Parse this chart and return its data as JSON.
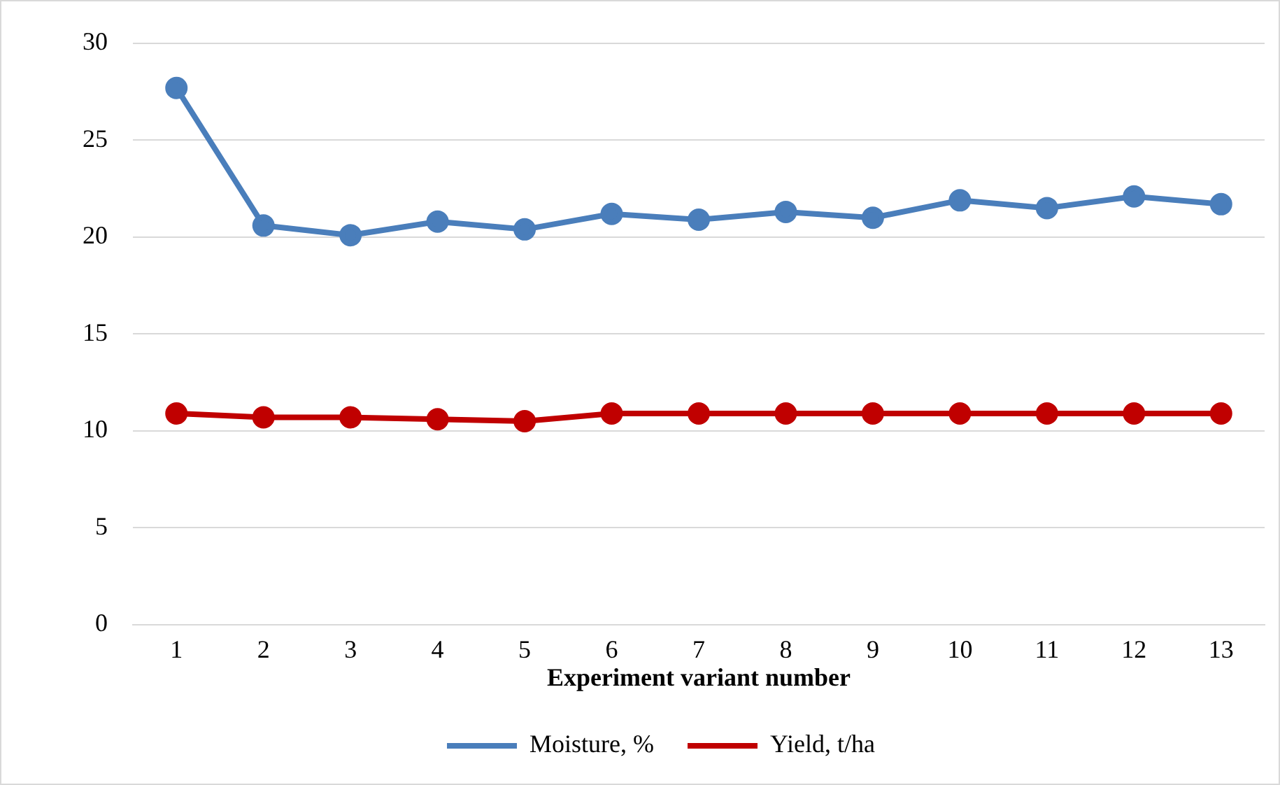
{
  "chart_data": {
    "type": "line",
    "xlabel": "Experiment variant number",
    "categories": [
      "1",
      "2",
      "3",
      "4",
      "5",
      "6",
      "7",
      "8",
      "9",
      "10",
      "11",
      "12",
      "13"
    ],
    "series": [
      {
        "name": "Moisture, %",
        "color": "#4a7ebb",
        "values": [
          27.7,
          20.6,
          20.1,
          20.8,
          20.4,
          21.2,
          20.9,
          21.3,
          21.0,
          21.9,
          21.5,
          22.1,
          21.7
        ]
      },
      {
        "name": "Yield, t/ha",
        "color": "#c00000",
        "values": [
          10.9,
          10.7,
          10.7,
          10.6,
          10.5,
          10.9,
          10.9,
          10.9,
          10.9,
          10.9,
          10.9,
          10.9,
          10.9
        ]
      }
    ],
    "ylim": [
      0,
      30
    ],
    "yticks": [
      0,
      5,
      10,
      15,
      20,
      25,
      30
    ],
    "grid": "y",
    "legend": "bottom",
    "marker": "circle",
    "line_style": "solid"
  }
}
